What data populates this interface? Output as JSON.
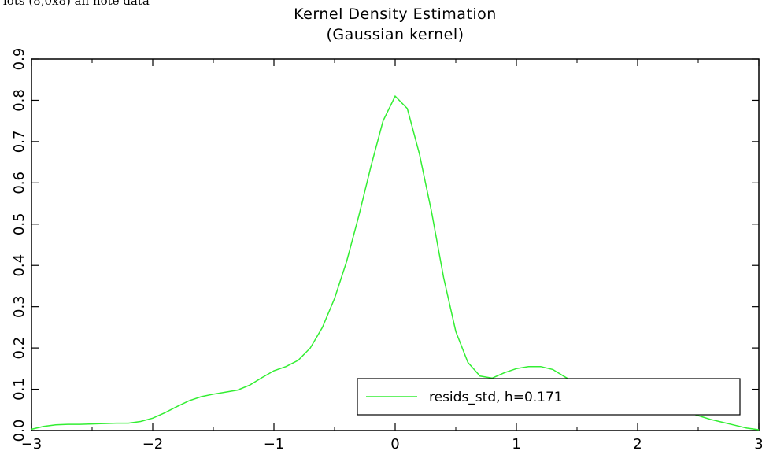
{
  "header_fragment": "lots (8,0x8) all note data",
  "chart_data": {
    "type": "line",
    "title": "Kernel Density Estimation",
    "subtitle": "(Gaussian kernel)",
    "xlabel": "",
    "ylabel": "",
    "xlim": [
      -3,
      3
    ],
    "ylim": [
      0,
      0.9
    ],
    "xticks": [
      -3,
      -2,
      -1,
      0,
      1,
      2,
      3
    ],
    "xtick_labels": [
      "−3",
      "−2",
      "−1",
      "0",
      "1",
      "2",
      "3"
    ],
    "yticks": [
      0,
      0.1,
      0.2,
      0.3,
      0.4,
      0.5,
      0.6,
      0.7,
      0.8,
      0.9
    ],
    "ytick_labels": [
      "0.0",
      "0.1",
      "0.2",
      "0.3",
      "0.4",
      "0.5",
      "0.6",
      "0.7",
      "0.8",
      "0.9"
    ],
    "grid": false,
    "legend_position": "bottom-right",
    "series": [
      {
        "name": "resids_std, h=0.171",
        "color": "#33ee33",
        "x": [
          -3.0,
          -2.9,
          -2.8,
          -2.7,
          -2.6,
          -2.5,
          -2.4,
          -2.3,
          -2.2,
          -2.1,
          -2.0,
          -1.9,
          -1.8,
          -1.7,
          -1.6,
          -1.5,
          -1.4,
          -1.3,
          -1.2,
          -1.1,
          -1.0,
          -0.9,
          -0.8,
          -0.7,
          -0.6,
          -0.5,
          -0.4,
          -0.3,
          -0.2,
          -0.1,
          0.0,
          0.1,
          0.2,
          0.3,
          0.4,
          0.5,
          0.6,
          0.7,
          0.8,
          0.9,
          1.0,
          1.1,
          1.2,
          1.3,
          1.4,
          1.5,
          1.6,
          1.7,
          1.8,
          1.9,
          2.0,
          2.1,
          2.2,
          2.3,
          2.4,
          2.5,
          2.6,
          2.7,
          2.8,
          2.9,
          3.0
        ],
        "y": [
          0.003,
          0.01,
          0.014,
          0.015,
          0.015,
          0.016,
          0.017,
          0.018,
          0.018,
          0.022,
          0.03,
          0.043,
          0.058,
          0.072,
          0.082,
          0.088,
          0.093,
          0.098,
          0.11,
          0.128,
          0.145,
          0.155,
          0.17,
          0.2,
          0.25,
          0.32,
          0.41,
          0.52,
          0.64,
          0.75,
          0.81,
          0.78,
          0.67,
          0.53,
          0.37,
          0.24,
          0.165,
          0.132,
          0.127,
          0.14,
          0.15,
          0.155,
          0.155,
          0.148,
          0.13,
          0.113,
          0.105,
          0.1,
          0.096,
          0.092,
          0.088,
          0.08,
          0.07,
          0.058,
          0.046,
          0.036,
          0.027,
          0.02,
          0.013,
          0.006,
          0.002
        ]
      }
    ]
  }
}
